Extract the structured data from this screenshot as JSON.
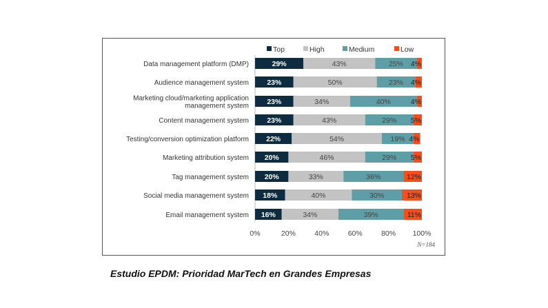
{
  "chart_data": {
    "type": "bar",
    "orientation": "horizontal",
    "stacked": true,
    "categories": [
      "Data management platform (DMP)",
      "Audience management system",
      "Marketing cloud/marketing application management system",
      "Content management system",
      "Testing/conversion optimization platform",
      "Marketing attribution system",
      "Tag management system",
      "Social media management system",
      "Email management system"
    ],
    "category_lines": [
      [
        "Data management platform (DMP)"
      ],
      [
        "Audience management system"
      ],
      [
        "Marketing cloud/marketing application",
        "management system"
      ],
      [
        "Content management system"
      ],
      [
        "Testing/conversion optimization platform"
      ],
      [
        "Marketing attribution system"
      ],
      [
        "Tag management system"
      ],
      [
        "Social media management system"
      ],
      [
        "Email management system"
      ]
    ],
    "series": [
      {
        "name": "Top",
        "color": "#0e2c40",
        "values": [
          29,
          23,
          23,
          23,
          22,
          20,
          20,
          18,
          16
        ]
      },
      {
        "name": "High",
        "color": "#c3c3c3",
        "values": [
          43,
          50,
          34,
          43,
          54,
          46,
          33,
          40,
          34
        ]
      },
      {
        "name": "Medium",
        "color": "#5e9ea6",
        "values": [
          25,
          23,
          40,
          29,
          19,
          29,
          36,
          30,
          39
        ]
      },
      {
        "name": "Low",
        "color": "#f24e1e",
        "values": [
          4,
          4,
          4,
          5,
          4,
          5,
          12,
          13,
          11
        ]
      }
    ],
    "xlim": [
      0,
      100
    ],
    "x_ticks": [
      "0%",
      "20%",
      "40%",
      "60%",
      "80%",
      "100%"
    ],
    "legend_position": "top",
    "grid": false,
    "note": "N=184"
  },
  "caption": "Estudio EPDM: Prioridad MarTech en Grandes Empresas"
}
